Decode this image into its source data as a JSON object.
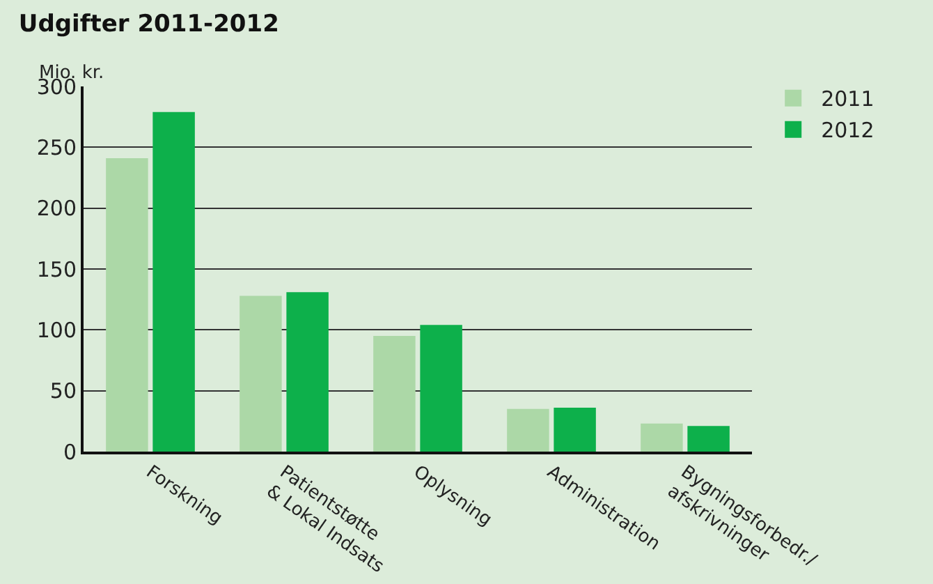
{
  "chart_data": {
    "type": "bar",
    "title": "Udgifter 2011-2012",
    "ylabel": "Mio. kr.",
    "categories": [
      "Forskning",
      "Patientstøtte\n& Lokal Indsats",
      "Oplysning",
      "Administration",
      "Bygningsforbedr./\nafskrivninger"
    ],
    "series": [
      {
        "name": "2011",
        "color": "#acd8a7",
        "values": [
          241,
          128,
          95,
          35,
          23
        ]
      },
      {
        "name": "2012",
        "color": "#0db04b",
        "values": [
          279,
          131,
          104,
          36,
          21
        ]
      }
    ],
    "ylim": [
      0,
      300
    ],
    "yticks": [
      0,
      50,
      100,
      150,
      200,
      250,
      300
    ],
    "grid": "y",
    "legend": "top right"
  }
}
